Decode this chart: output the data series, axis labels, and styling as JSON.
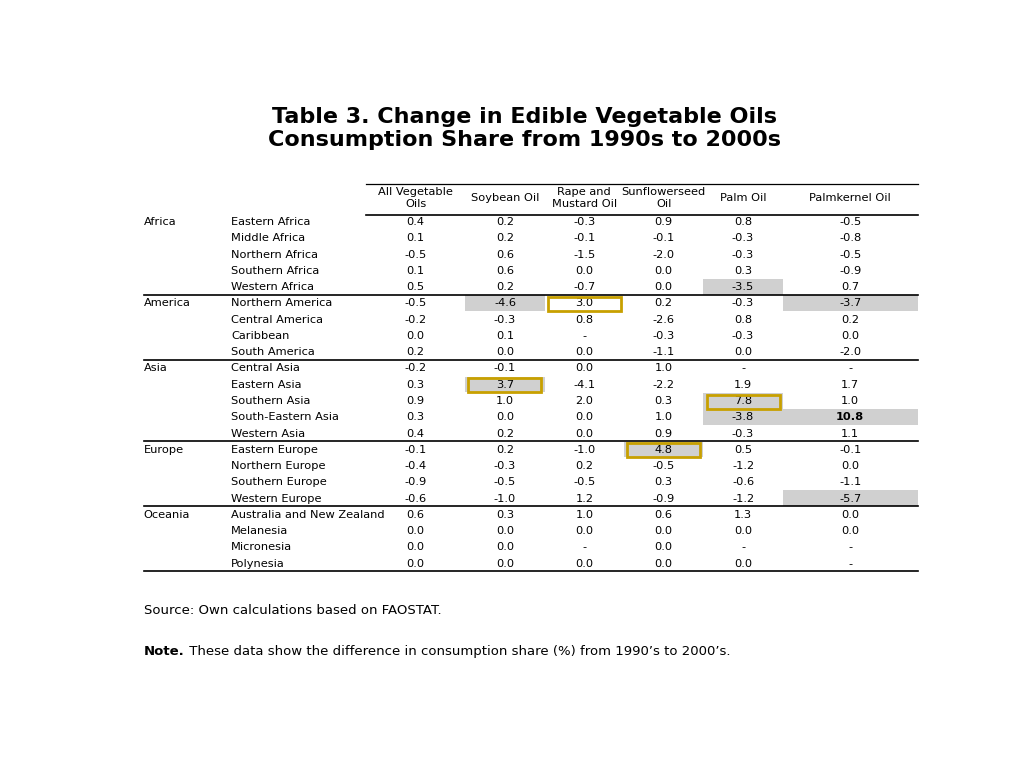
{
  "title": "Table 3. Change in Edible Vegetable Oils\nConsumption Share from 1990s to 2000s",
  "col_headers": [
    "All Vegetable\nOils",
    "Soybean Oil",
    "Rape and\nMustard Oil",
    "Sunflowerseed\nOil",
    "Palm Oil",
    "Palmkernel Oil"
  ],
  "rows": [
    {
      "region": "Africa",
      "sub": "Eastern Africa",
      "vals": [
        "0.4",
        "0.2",
        "-0.3",
        "0.9",
        "0.8",
        "-0.5"
      ],
      "gray": [],
      "gold_box": [],
      "bold": []
    },
    {
      "region": "",
      "sub": "Middle Africa",
      "vals": [
        "0.1",
        "0.2",
        "-0.1",
        "-0.1",
        "-0.3",
        "-0.8"
      ],
      "gray": [],
      "gold_box": [],
      "bold": []
    },
    {
      "region": "",
      "sub": "Northern Africa",
      "vals": [
        "-0.5",
        "0.6",
        "-1.5",
        "-2.0",
        "-0.3",
        "-0.5"
      ],
      "gray": [],
      "gold_box": [],
      "bold": []
    },
    {
      "region": "",
      "sub": "Southern Africa",
      "vals": [
        "0.1",
        "0.6",
        "0.0",
        "0.0",
        "0.3",
        "-0.9"
      ],
      "gray": [],
      "gold_box": [],
      "bold": []
    },
    {
      "region": "",
      "sub": "Western Africa",
      "vals": [
        "0.5",
        "0.2",
        "-0.7",
        "0.0",
        "-3.5",
        "0.7"
      ],
      "gray": [
        4
      ],
      "gold_box": [],
      "bold": []
    },
    {
      "region": "America",
      "sub": "Northern America",
      "vals": [
        "-0.5",
        "-4.6",
        "3.0",
        "0.2",
        "-0.3",
        "-3.7"
      ],
      "gray": [
        1,
        5
      ],
      "gold_box": [
        2
      ],
      "bold": []
    },
    {
      "region": "",
      "sub": "Central America",
      "vals": [
        "-0.2",
        "-0.3",
        "0.8",
        "-2.6",
        "0.8",
        "0.2"
      ],
      "gray": [],
      "gold_box": [],
      "bold": []
    },
    {
      "region": "",
      "sub": "Caribbean",
      "vals": [
        "0.0",
        "0.1",
        "-",
        "-0.3",
        "-0.3",
        "0.0"
      ],
      "gray": [],
      "gold_box": [],
      "bold": []
    },
    {
      "region": "",
      "sub": "South America",
      "vals": [
        "0.2",
        "0.0",
        "0.0",
        "-1.1",
        "0.0",
        "-2.0"
      ],
      "gray": [],
      "gold_box": [],
      "bold": []
    },
    {
      "region": "Asia",
      "sub": "Central Asia",
      "vals": [
        "-0.2",
        "-0.1",
        "0.0",
        "1.0",
        "-",
        "-"
      ],
      "gray": [],
      "gold_box": [],
      "bold": []
    },
    {
      "region": "",
      "sub": "Eastern Asia",
      "vals": [
        "0.3",
        "3.7",
        "-4.1",
        "-2.2",
        "1.9",
        "1.7"
      ],
      "gray": [
        1
      ],
      "gold_box": [
        1
      ],
      "bold": []
    },
    {
      "region": "",
      "sub": "Southern Asia",
      "vals": [
        "0.9",
        "1.0",
        "2.0",
        "0.3",
        "7.8",
        "1.0"
      ],
      "gray": [
        4
      ],
      "gold_box": [
        4
      ],
      "bold": []
    },
    {
      "region": "",
      "sub": "South-Eastern Asia",
      "vals": [
        "0.3",
        "0.0",
        "0.0",
        "1.0",
        "-3.8",
        "10.8"
      ],
      "gray": [
        4,
        5
      ],
      "gold_box": [],
      "bold": [
        5
      ]
    },
    {
      "region": "",
      "sub": "Western Asia",
      "vals": [
        "0.4",
        "0.2",
        "0.0",
        "0.9",
        "-0.3",
        "1.1"
      ],
      "gray": [],
      "gold_box": [],
      "bold": []
    },
    {
      "region": "Europe",
      "sub": "Eastern Europe",
      "vals": [
        "-0.1",
        "0.2",
        "-1.0",
        "4.8",
        "0.5",
        "-0.1"
      ],
      "gray": [
        3
      ],
      "gold_box": [
        3
      ],
      "bold": []
    },
    {
      "region": "",
      "sub": "Northern Europe",
      "vals": [
        "-0.4",
        "-0.3",
        "0.2",
        "-0.5",
        "-1.2",
        "0.0"
      ],
      "gray": [],
      "gold_box": [],
      "bold": []
    },
    {
      "region": "",
      "sub": "Southern Europe",
      "vals": [
        "-0.9",
        "-0.5",
        "-0.5",
        "0.3",
        "-0.6",
        "-1.1"
      ],
      "gray": [],
      "gold_box": [],
      "bold": []
    },
    {
      "region": "",
      "sub": "Western Europe",
      "vals": [
        "-0.6",
        "-1.0",
        "1.2",
        "-0.9",
        "-1.2",
        "-5.7"
      ],
      "gray": [
        5
      ],
      "gold_box": [],
      "bold": []
    },
    {
      "region": "Oceania",
      "sub": "Australia and New Zealand",
      "vals": [
        "0.6",
        "0.3",
        "1.0",
        "0.6",
        "1.3",
        "0.0"
      ],
      "gray": [],
      "gold_box": [],
      "bold": []
    },
    {
      "region": "",
      "sub": "Melanesia",
      "vals": [
        "0.0",
        "0.0",
        "0.0",
        "0.0",
        "0.0",
        "0.0"
      ],
      "gray": [],
      "gold_box": [],
      "bold": []
    },
    {
      "region": "",
      "sub": "Micronesia",
      "vals": [
        "0.0",
        "0.0",
        "-",
        "0.0",
        "-",
        "-"
      ],
      "gray": [],
      "gold_box": [],
      "bold": []
    },
    {
      "region": "",
      "sub": "Polynesia",
      "vals": [
        "0.0",
        "0.0",
        "0.0",
        "0.0",
        "0.0",
        "-"
      ],
      "gray": [],
      "gold_box": [],
      "bold": []
    }
  ],
  "section_dividers_after": [
    4,
    8,
    13,
    17
  ],
  "source_text": "Source: Own calculations based on FAOSTAT.",
  "note_bold": "Note.",
  "note_regular": " These data show the difference in consumption share (%) from 1990’s to 2000’s.",
  "bg_color": "#ffffff",
  "gray_color": "#d0d0d0",
  "gold_color": "#c8a000"
}
